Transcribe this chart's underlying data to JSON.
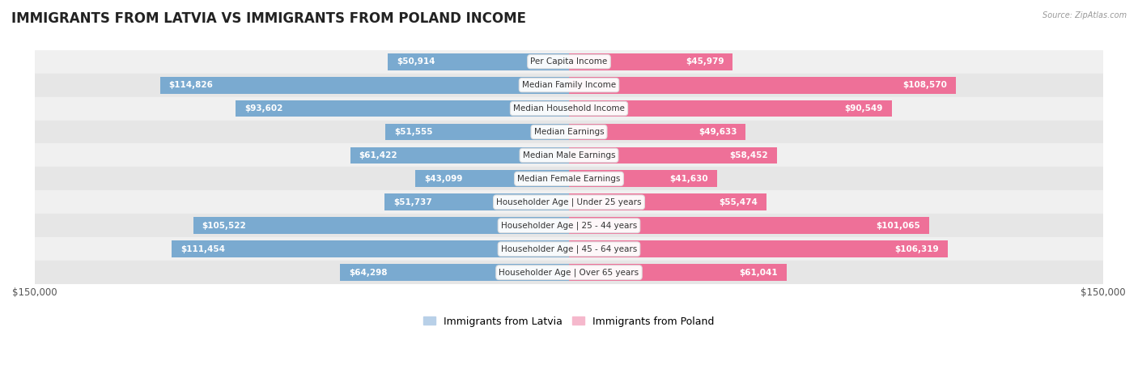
{
  "title": "IMMIGRANTS FROM LATVIA VS IMMIGRANTS FROM POLAND INCOME",
  "source": "Source: ZipAtlas.com",
  "categories": [
    "Per Capita Income",
    "Median Family Income",
    "Median Household Income",
    "Median Earnings",
    "Median Male Earnings",
    "Median Female Earnings",
    "Householder Age | Under 25 years",
    "Householder Age | 25 - 44 years",
    "Householder Age | 45 - 64 years",
    "Householder Age | Over 65 years"
  ],
  "latvia_values": [
    50914,
    114826,
    93602,
    51555,
    61422,
    43099,
    51737,
    105522,
    111454,
    64298
  ],
  "poland_values": [
    45979,
    108570,
    90549,
    49633,
    58452,
    41630,
    55474,
    101065,
    106319,
    61041
  ],
  "latvia_color_light": "#B8D0E8",
  "latvia_color_strong": "#7AAAD0",
  "poland_color_light": "#F5B8CC",
  "poland_color_strong": "#EE7098",
  "bar_label_inside_color": "#ffffff",
  "bar_label_outside_color": "#666666",
  "max_value": 150000,
  "background_color": "#ffffff",
  "row_bg_even": "#f0f0f0",
  "row_bg_odd": "#e6e6e6",
  "legend_latvia": "Immigrants from Latvia",
  "legend_poland": "Immigrants from Poland",
  "inside_threshold": 35000,
  "label_fontsize": 7.5,
  "cat_fontsize": 7.5,
  "title_fontsize": 12
}
